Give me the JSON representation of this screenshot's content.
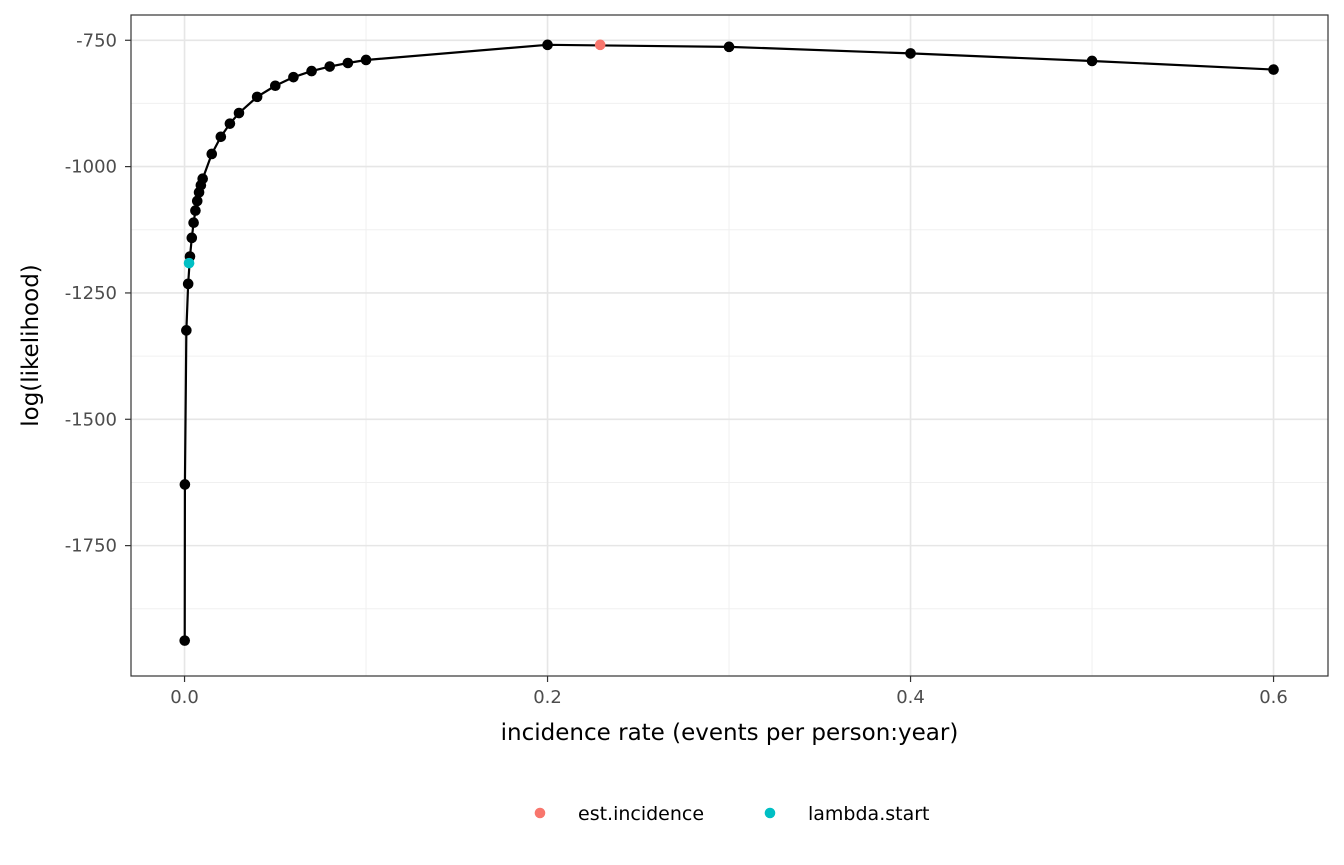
{
  "chart_data": {
    "type": "line",
    "xlabel": "incidence rate (events per person:year)",
    "ylabel": "log(likelihood)",
    "xlim": [
      -0.0295,
      0.63
    ],
    "ylim": [
      -2008,
      -700
    ],
    "x_ticks": [
      0.0,
      0.2,
      0.4,
      0.6
    ],
    "x_tick_labels": [
      "0.0",
      "0.2",
      "0.4",
      "0.6"
    ],
    "y_ticks": [
      -1750,
      -1500,
      -1250,
      -1000,
      -750
    ],
    "y_tick_labels": [
      "-1750",
      "-1500",
      "-1250",
      "-1000",
      "-750"
    ],
    "grid": true,
    "series": [
      {
        "color": "#000000",
        "x": [
          0.0001,
          0.0002,
          0.001,
          0.002,
          0.003,
          0.004,
          0.005,
          0.006,
          0.007,
          0.008,
          0.009,
          0.01,
          0.015,
          0.02,
          0.025,
          0.03,
          0.04,
          0.05,
          0.06,
          0.07,
          0.08,
          0.09,
          0.1,
          0.2,
          0.3,
          0.4,
          0.5,
          0.6
        ],
        "y": [
          -1938,
          -1629,
          -1324,
          -1232,
          -1178,
          -1141,
          -1111,
          -1087,
          -1068,
          -1051,
          -1037,
          -1024,
          -975,
          -941,
          -915,
          -894,
          -862,
          -840,
          -823,
          -811,
          -802,
          -795,
          -789,
          -759,
          -763,
          -776,
          -791,
          -808
        ]
      }
    ],
    "highlights": [
      {
        "name": "est.incidence",
        "x": 0.229,
        "y": -759,
        "color": "#F8766D"
      },
      {
        "name": "lambda.start",
        "x": 0.0025,
        "y": -1191,
        "color": "#00BFC4"
      }
    ],
    "legend": {
      "position": "bottom",
      "entries": [
        {
          "label": "est.incidence",
          "color": "#F8766D"
        },
        {
          "label": "lambda.start",
          "color": "#00BFC4"
        }
      ]
    }
  }
}
